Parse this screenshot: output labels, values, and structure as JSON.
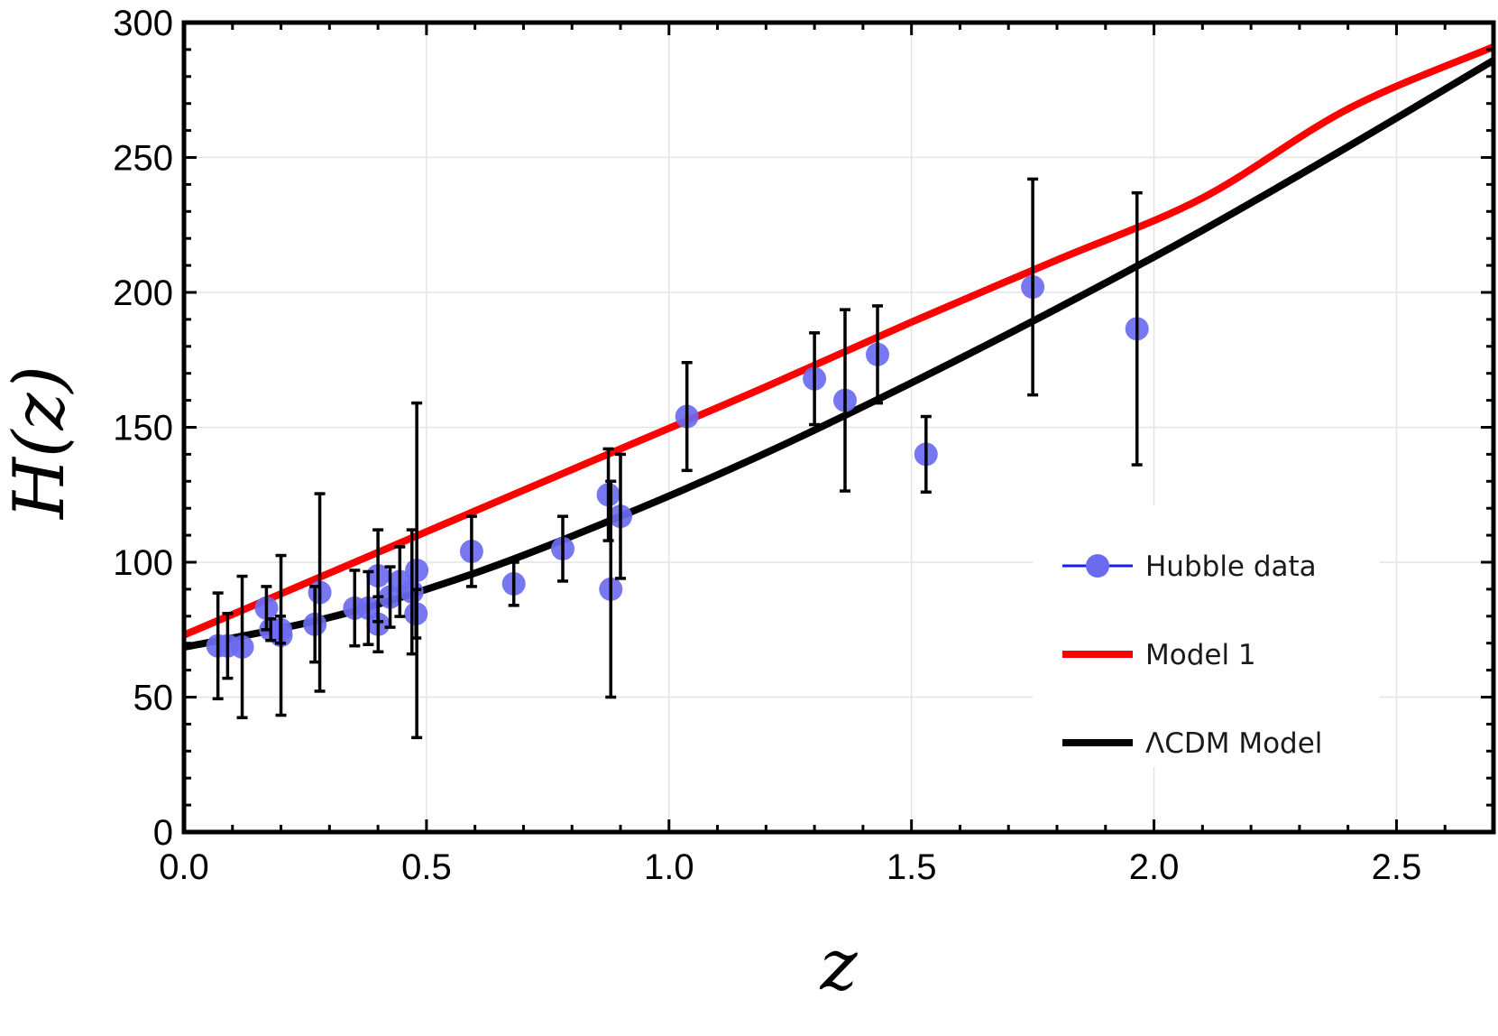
{
  "chart_data": {
    "type": "scatter",
    "xlabel": "z",
    "ylabel": "H(z)",
    "xlim": [
      0,
      2.7
    ],
    "ylim": [
      0,
      300
    ],
    "x_ticks": [
      0,
      0.5,
      1.0,
      1.5,
      2.0,
      2.5
    ],
    "x_tick_labels": [
      "0.0",
      "0.5",
      "1.0",
      "1.5",
      "2.0",
      "2.5"
    ],
    "y_ticks": [
      0,
      50,
      100,
      150,
      200,
      250,
      300
    ],
    "y_tick_labels": [
      "0",
      "50",
      "100",
      "150",
      "200",
      "250",
      "300"
    ],
    "grid": true,
    "legend_position": "lower-right",
    "colors": {
      "data": "#6b6bf0",
      "model1": "#ff0000",
      "lcdm": "#000000"
    },
    "series": [
      {
        "name": "Hubble data",
        "kind": "points-with-errors",
        "points": [
          {
            "x": 0.07,
            "y": 69,
            "err": 19.6
          },
          {
            "x": 0.09,
            "y": 69,
            "err": 12
          },
          {
            "x": 0.12,
            "y": 68.6,
            "err": 26.2
          },
          {
            "x": 0.17,
            "y": 83,
            "err": 8
          },
          {
            "x": 0.179,
            "y": 75,
            "err": 4
          },
          {
            "x": 0.199,
            "y": 75,
            "err": 5
          },
          {
            "x": 0.2,
            "y": 72.9,
            "err": 29.6
          },
          {
            "x": 0.27,
            "y": 77,
            "err": 14
          },
          {
            "x": 0.28,
            "y": 88.8,
            "err": 36.6
          },
          {
            "x": 0.352,
            "y": 83,
            "err": 14
          },
          {
            "x": 0.38,
            "y": 83,
            "err": 13.5
          },
          {
            "x": 0.4,
            "y": 95,
            "err": 17
          },
          {
            "x": 0.4004,
            "y": 77,
            "err": 10.2
          },
          {
            "x": 0.425,
            "y": 87.1,
            "err": 11.2
          },
          {
            "x": 0.445,
            "y": 92.8,
            "err": 12.9
          },
          {
            "x": 0.47,
            "y": 89,
            "err": 23
          },
          {
            "x": 0.4783,
            "y": 80.9,
            "err": 9
          },
          {
            "x": 0.48,
            "y": 97,
            "err": 62
          },
          {
            "x": 0.593,
            "y": 104,
            "err": 13
          },
          {
            "x": 0.68,
            "y": 92,
            "err": 8
          },
          {
            "x": 0.781,
            "y": 105,
            "err": 12
          },
          {
            "x": 0.875,
            "y": 125,
            "err": 17
          },
          {
            "x": 0.88,
            "y": 90,
            "err": 40
          },
          {
            "x": 0.9,
            "y": 117,
            "err": 23
          },
          {
            "x": 1.037,
            "y": 154,
            "err": 20
          },
          {
            "x": 1.3,
            "y": 168,
            "err": 17
          },
          {
            "x": 1.363,
            "y": 160,
            "err": 33.6
          },
          {
            "x": 1.43,
            "y": 177,
            "err": 18
          },
          {
            "x": 1.53,
            "y": 140,
            "err": 14
          },
          {
            "x": 1.75,
            "y": 202,
            "err": 40
          },
          {
            "x": 1.965,
            "y": 186.5,
            "err": 50.4
          }
        ]
      },
      {
        "name": "Model 1",
        "kind": "line",
        "x": [
          0,
          0.3,
          0.6,
          0.9,
          1.2,
          1.5,
          1.8,
          2.1,
          2.4,
          2.7
        ],
        "y": [
          73,
          96,
          119,
          142,
          165,
          189,
          212,
          235,
          268,
          291
        ]
      },
      {
        "name": "ΛCDM Model",
        "kind": "line",
        "x": [
          0,
          0.3,
          0.6,
          0.9,
          1.2,
          1.5,
          1.8,
          2.1,
          2.4,
          2.7
        ],
        "y": [
          68.5,
          79.5,
          96,
          117,
          140.5,
          166.5,
          194,
          223,
          254,
          286
        ]
      }
    ]
  }
}
